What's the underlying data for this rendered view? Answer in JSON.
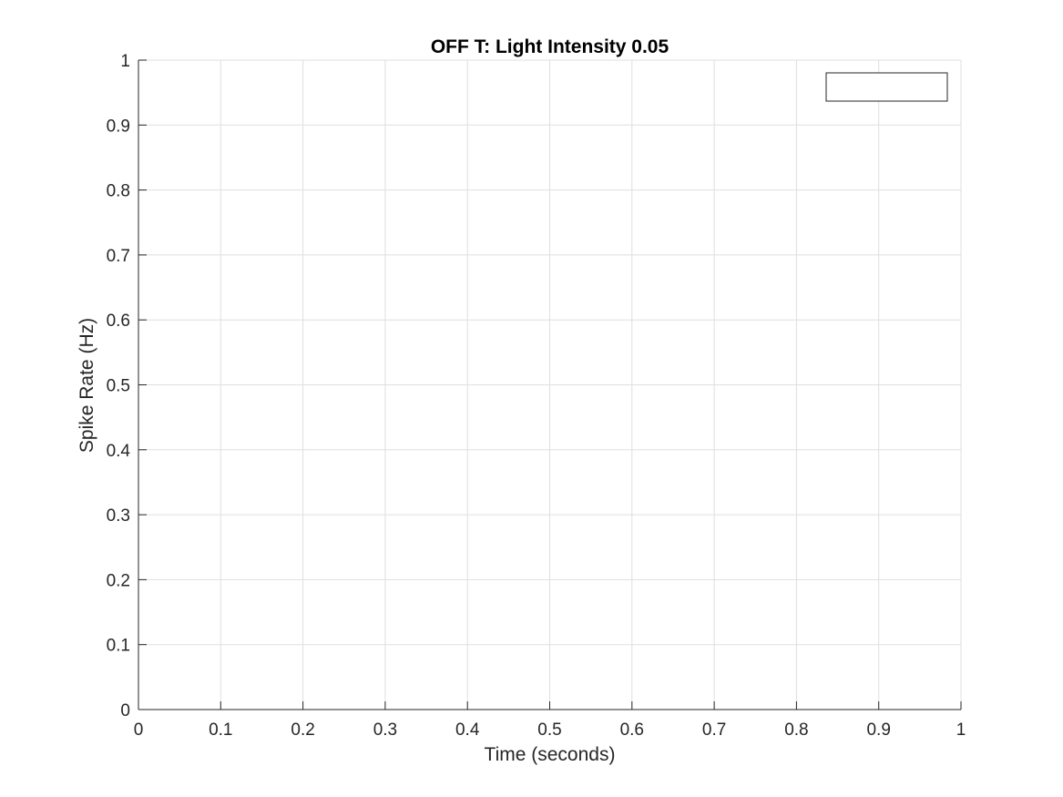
{
  "chart_data": {
    "type": "line",
    "title": "OFF T: Light Intensity 0.05",
    "xlabel": "Time (seconds)",
    "ylabel": "Spike Rate (Hz)",
    "xlim": [
      0,
      1
    ],
    "ylim": [
      0,
      1
    ],
    "x_ticks": [
      0,
      0.1,
      0.2,
      0.3,
      0.4,
      0.5,
      0.6,
      0.7,
      0.8,
      0.9,
      1
    ],
    "x_tick_labels": [
      "0",
      "0.1",
      "0.2",
      "0.3",
      "0.4",
      "0.5",
      "0.6",
      "0.7",
      "0.8",
      "0.9",
      "1"
    ],
    "y_ticks": [
      0,
      0.1,
      0.2,
      0.3,
      0.4,
      0.5,
      0.6,
      0.7,
      0.8,
      0.9,
      1
    ],
    "y_tick_labels": [
      "0",
      "0.1",
      "0.2",
      "0.3",
      "0.4",
      "0.5",
      "0.6",
      "0.7",
      "0.8",
      "0.9",
      "1"
    ],
    "grid": true,
    "legend_position": "top-right",
    "legend_entries": [],
    "series": []
  },
  "colors": {
    "background": "#ffffff",
    "axis": "#262626",
    "grid": "#dfdfdf",
    "legend_border": "#262626",
    "title": "#000000"
  }
}
